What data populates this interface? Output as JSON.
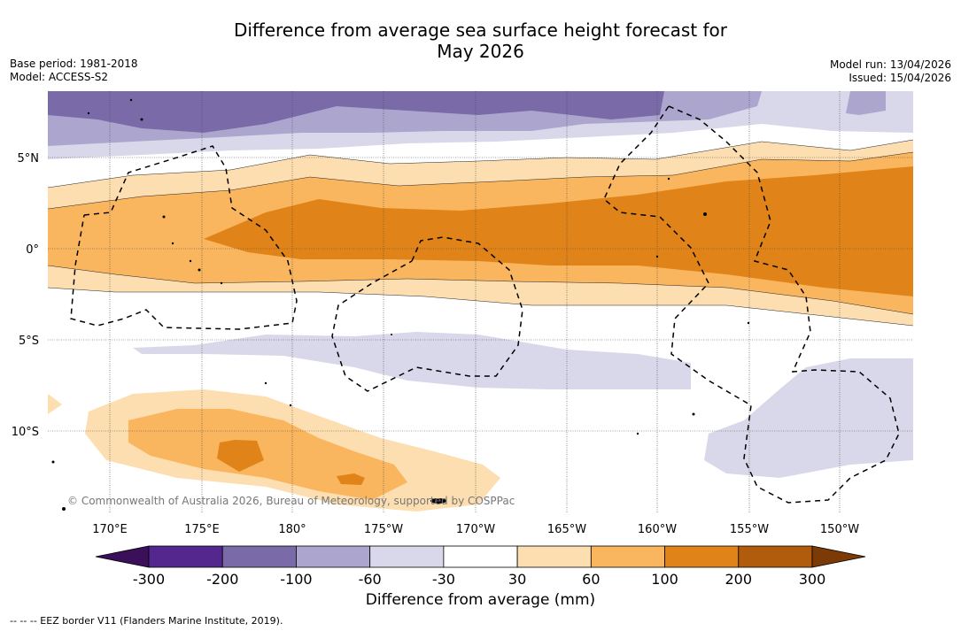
{
  "title": {
    "line1": "Difference from average sea surface height forecast for",
    "line2": "May 2026"
  },
  "meta": {
    "base_period": "Base period: 1981-2018",
    "model": "Model: ACCESS-S2",
    "model_run": "Model run: 13/04/2026",
    "issued": "Issued: 15/04/2026"
  },
  "map": {
    "lat_labels": [
      "5°N",
      "0°",
      "5°S",
      "10°S"
    ],
    "lon_labels": [
      "170°E",
      "175°E",
      "180°",
      "175°W",
      "170°W",
      "165°W",
      "160°W",
      "155°W",
      "150°W"
    ],
    "copyright": "© Commonwealth of Australia 2026, Bureau of Meteorology, supported by COSPPac"
  },
  "colorbar": {
    "colors": [
      "#3b0f5a",
      "#54278f",
      "#7a6aa8",
      "#aca6cf",
      "#d8d8ea",
      "#ffffff",
      "#fddeb0",
      "#fab55f",
      "#e08318",
      "#b05c0c",
      "#7b3a06"
    ],
    "ticks": [
      "-300",
      "-200",
      "-100",
      "-60",
      "-30",
      "30",
      "60",
      "100",
      "200",
      "300"
    ],
    "title": "Difference from average (mm)"
  },
  "footnote": "--  --  -- EEZ border V11 (Flanders Marine Institute, 2019)."
}
